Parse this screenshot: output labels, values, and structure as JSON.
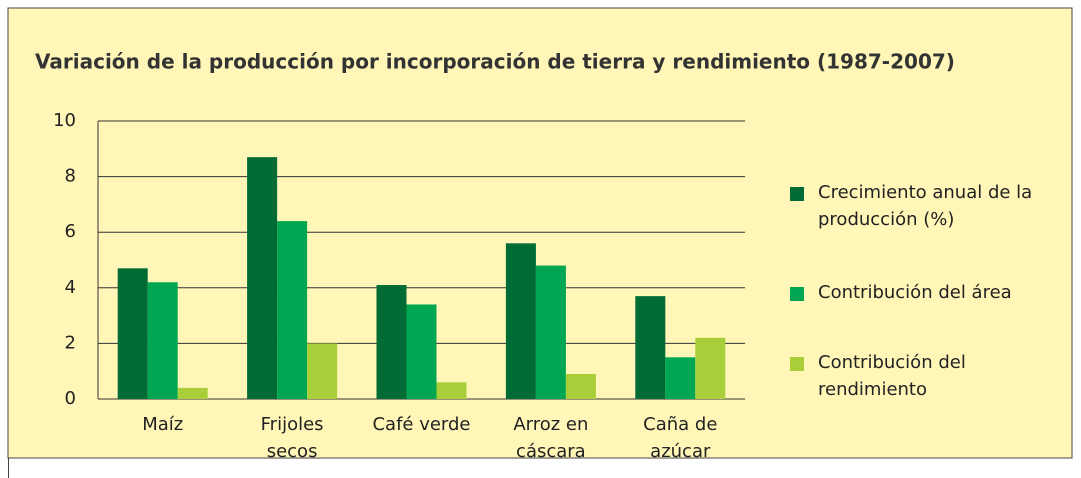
{
  "chart_data": {
    "type": "bar",
    "title": "Variación de la producción por incorporación de tierra y rendimiento (1987-2007)",
    "categories": [
      "Maíz",
      "Frijoles secos",
      "Café verde",
      "Arroz en cáscara",
      "Caña de azúcar"
    ],
    "series": [
      {
        "name": "Crecimiento anual de la producción (%)",
        "color": "#006b35",
        "values": [
          4.7,
          8.7,
          4.1,
          5.6,
          3.7
        ]
      },
      {
        "name": "Contribución del área",
        "color": "#00a651",
        "values": [
          4.2,
          6.4,
          3.4,
          4.8,
          1.5
        ]
      },
      {
        "name": "Contribución del rendimiento",
        "color": "#a8cf3a",
        "values": [
          0.4,
          2.0,
          0.6,
          0.9,
          2.2
        ]
      }
    ],
    "ylim": [
      0,
      10
    ],
    "yticks": [
      0,
      2,
      4,
      6,
      8,
      10
    ],
    "grid": true
  }
}
